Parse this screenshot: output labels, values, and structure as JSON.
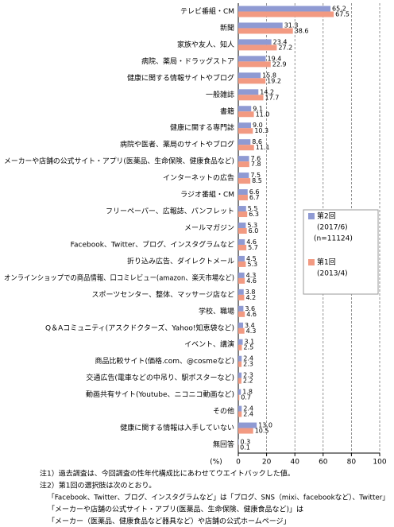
{
  "chart_data": {
    "type": "hbar",
    "categories": [
      "テレビ番組・CM",
      "新聞",
      "家族や友人、知人",
      "病院、薬局・ドラッグストア",
      "健康に関する情報サイトやブログ",
      "一般雑誌",
      "書籍",
      "健康に関する専門誌",
      "病院や医者、薬局のサイトやブログ",
      "メーカーや店舗の公式サイト・アプリ(医薬品、生命保険、健康食品など)",
      "インターネットの広告",
      "ラジオ番組・CM",
      "フリーペーパー、広報誌、パンフレット",
      "メールマガジン",
      "Facebook、Twitter、ブログ、インスタグラムなど",
      "折り込み広告、ダイレクトメール",
      "オンラインショップでの商品情報、口コミレビュー(amazon、楽天市場など)",
      "スポーツセンター、整体、マッサージ店など",
      "学校、職場",
      "Q＆Aコミュニティ(アスクドクターズ、Yahoo!知恵袋など)",
      "イベント、講演",
      "商品比較サイト(価格.com、@cosmeなど)",
      "交通広告(電車などの中吊り、駅ポスターなど)",
      "動画共有サイト(Youtube、ニコニコ動画など)",
      "その他",
      "健康に関する情報は入手していない",
      "無回答"
    ],
    "series": [
      {
        "name": "第2回",
        "period": "(2017/6)",
        "sample": "(n=11124)",
        "color": "#8f9ad3",
        "values": [
          65.2,
          31.3,
          23.4,
          19.4,
          15.8,
          14.2,
          9.1,
          9.0,
          8.6,
          7.6,
          7.5,
          6.6,
          5.5,
          5.3,
          4.6,
          4.5,
          4.3,
          3.8,
          3.6,
          3.4,
          3.1,
          2.4,
          2.3,
          1.8,
          2.4,
          13.0,
          0.3
        ],
        "value_labels": [
          "65.2",
          "31.3",
          "23.4",
          "19.4",
          "15.8",
          "14.2",
          "9.1",
          "9.0",
          "8.6",
          "7.6",
          "7.5",
          "6.6",
          "5.5",
          "5.3",
          "4.6",
          "4.5",
          "4.3",
          "3.8",
          "3.6",
          "3.4",
          "3.1",
          "2.4",
          "2.3",
          "1.8",
          "2.4",
          "13.0",
          "0.3"
        ]
      },
      {
        "name": "第1回",
        "period": "(2013/4)",
        "color": "#f29a82",
        "values": [
          67.5,
          38.6,
          27.2,
          22.9,
          19.2,
          17.7,
          11.0,
          10.3,
          11.1,
          7.8,
          8.5,
          6.7,
          6.3,
          6.0,
          5.7,
          5.3,
          4.6,
          4.2,
          4.6,
          4.3,
          2.5,
          2.3,
          2.2,
          0.7,
          2.4,
          10.5,
          0.1
        ],
        "value_labels": [
          "67.5",
          "38.6",
          "27.2",
          "22.9",
          "19.2",
          "17.7",
          "11.0",
          "10.3",
          "11.1",
          "7.8",
          "8.5",
          "6.7",
          "6.3",
          "6.0",
          "5.7",
          "5.3",
          "4.6",
          "4.2",
          "4.6",
          "4.3",
          "2.5",
          "2.3",
          "2.2",
          "0.7",
          "2.4",
          "10.5",
          "0.1"
        ]
      }
    ],
    "xlabel": "(%)",
    "xlim": [
      0,
      100
    ],
    "xticks": [
      0,
      20,
      40,
      60,
      80,
      100
    ],
    "grid": true,
    "notes": [
      "注1）過去調査は、今回調査の性年代構成比にあわせてウエイトバックした値。",
      "注2）第1回の選択肢は次のとおり。",
      "「Facebook、Twitter、ブログ、インスタグラムなど」は「ブログ、SNS（mixi、facebookなど）、Twitter」",
      "「メーカーや店舗の公式サイト・アプリ(医薬品、生命保険、健康食品など)」は",
      "「メーカー（医薬品、健康食品など器具など）や店舗の公式ホームページ」"
    ]
  }
}
